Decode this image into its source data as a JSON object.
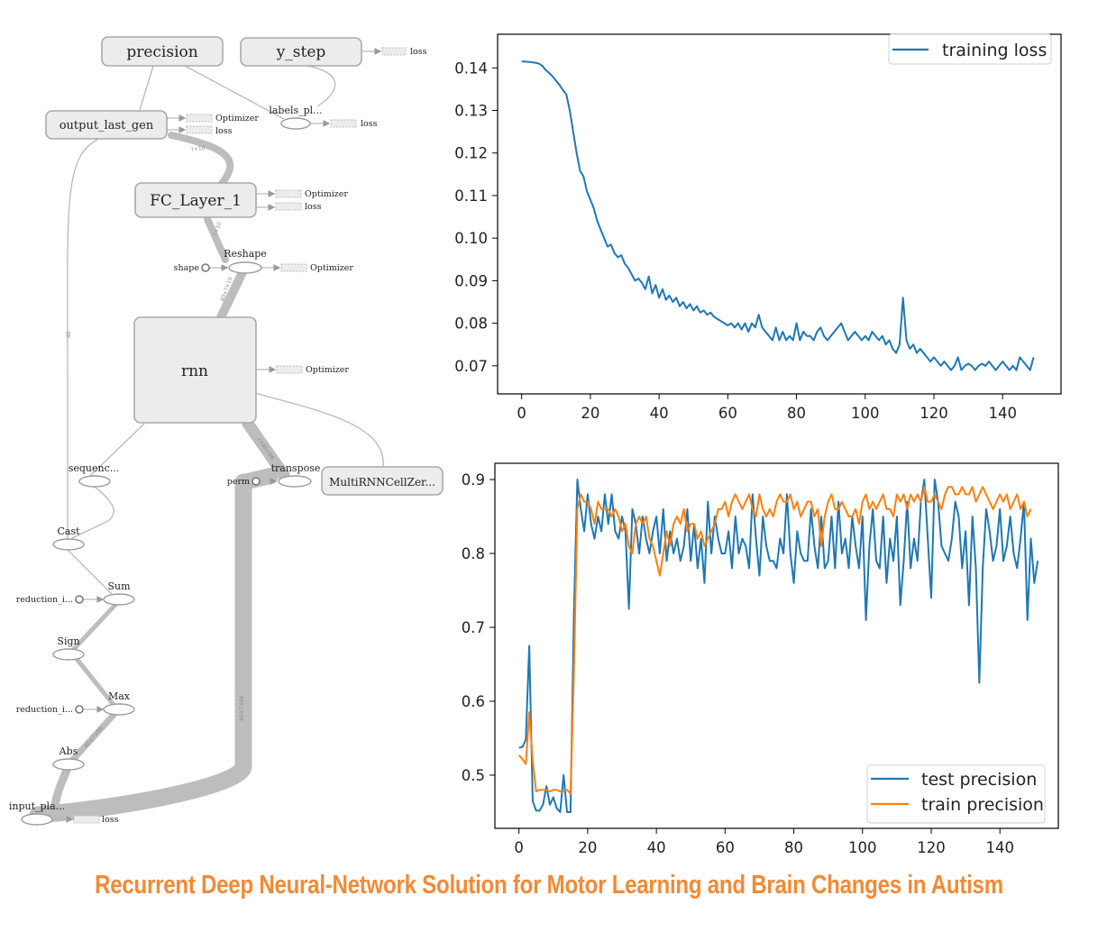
{
  "graph": {
    "nodes": {
      "precision": "precision",
      "y_step": "y_step",
      "output_last_gen": "output_last_gen",
      "labels_pl": "labels_pl...",
      "fc_layer": "FC_Layer_1",
      "reshape": "Reshape",
      "shape": "shape",
      "rnn": "rnn",
      "sequence": "sequenc...",
      "transpose": "transpose",
      "perm": "perm",
      "multirnn": "MultiRNNCellZer...",
      "cast": "Cast",
      "sum": "Sum",
      "reduction_1": "reduction_i...",
      "sign": "Sign",
      "max": "Max",
      "reduction_2": "reduction_i...",
      "abs": "Abs",
      "input_pla": "input_pla..."
    },
    "aux": {
      "loss": "loss",
      "optimizer": "Optimizer"
    }
  },
  "chart_data": [
    {
      "type": "line",
      "xlim": [
        -7,
        157
      ],
      "ylim": [
        0.0634,
        0.1479
      ],
      "xticks": [
        0,
        20,
        40,
        60,
        80,
        100,
        120,
        140
      ],
      "yticks": [
        0.07,
        0.08,
        0.09,
        0.1,
        0.11,
        0.12,
        0.13,
        0.14
      ],
      "legend": "upper right",
      "series": [
        {
          "name": "training loss",
          "color": "#1f77b4",
          "x_start": 0,
          "values": [
            0.1415,
            0.1415,
            0.1414,
            0.1413,
            0.1412,
            0.141,
            0.1405,
            0.1395,
            0.1388,
            0.138,
            0.137,
            0.136,
            0.1348,
            0.1338,
            0.13,
            0.125,
            0.12,
            0.1158,
            0.1145,
            0.111,
            0.109,
            0.107,
            0.104,
            0.102,
            0.1,
            0.098,
            0.0985,
            0.0965,
            0.0955,
            0.096,
            0.094,
            0.093,
            0.0915,
            0.09,
            0.0905,
            0.0895,
            0.088,
            0.091,
            0.087,
            0.089,
            0.086,
            0.088,
            0.0855,
            0.0865,
            0.085,
            0.086,
            0.084,
            0.085,
            0.0835,
            0.0845,
            0.083,
            0.084,
            0.0825,
            0.083,
            0.082,
            0.0825,
            0.0815,
            0.081,
            0.0805,
            0.08,
            0.0795,
            0.08,
            0.079,
            0.08,
            0.0785,
            0.08,
            0.078,
            0.08,
            0.079,
            0.082,
            0.079,
            0.078,
            0.077,
            0.076,
            0.079,
            0.076,
            0.078,
            0.076,
            0.077,
            0.076,
            0.08,
            0.076,
            0.078,
            0.077,
            0.077,
            0.076,
            0.078,
            0.079,
            0.077,
            0.076,
            0.077,
            0.078,
            0.079,
            0.08,
            0.078,
            0.076,
            0.077,
            0.078,
            0.077,
            0.076,
            0.077,
            0.076,
            0.078,
            0.077,
            0.076,
            0.077,
            0.075,
            0.076,
            0.074,
            0.073,
            0.075,
            0.086,
            0.076,
            0.074,
            0.075,
            0.073,
            0.074,
            0.073,
            0.072,
            0.071,
            0.072,
            0.071,
            0.07,
            0.071,
            0.07,
            0.069,
            0.07,
            0.072,
            0.069,
            0.07,
            0.0705,
            0.07,
            0.069,
            0.07,
            0.0705,
            0.07,
            0.071,
            0.07,
            0.069,
            0.07,
            0.071,
            0.07,
            0.069,
            0.07,
            0.069,
            0.072,
            0.071,
            0.07,
            0.069,
            0.072
          ]
        }
      ]
    },
    {
      "type": "line",
      "xlim": [
        -7,
        157
      ],
      "ylim": [
        0.428,
        0.922
      ],
      "xticks": [
        0,
        20,
        40,
        60,
        80,
        100,
        120,
        140
      ],
      "yticks": [
        0.5,
        0.6,
        0.7,
        0.8,
        0.9
      ],
      "legend": "lower right",
      "series": [
        {
          "name": "test precision",
          "color": "#1f77b4",
          "x_start": 0,
          "values": [
            0.537,
            0.538,
            0.548,
            0.675,
            0.465,
            0.452,
            0.452,
            0.46,
            0.485,
            0.46,
            0.47,
            0.455,
            0.45,
            0.5,
            0.45,
            0.45,
            0.72,
            0.9,
            0.86,
            0.83,
            0.88,
            0.84,
            0.82,
            0.85,
            0.83,
            0.88,
            0.84,
            0.88,
            0.83,
            0.82,
            0.85,
            0.83,
            0.725,
            0.86,
            0.84,
            0.8,
            0.85,
            0.82,
            0.8,
            0.83,
            0.85,
            0.8,
            0.86,
            0.79,
            0.83,
            0.8,
            0.82,
            0.79,
            0.81,
            0.86,
            0.79,
            0.84,
            0.78,
            0.82,
            0.76,
            0.87,
            0.8,
            0.85,
            0.82,
            0.8,
            0.8,
            0.83,
            0.78,
            0.85,
            0.8,
            0.82,
            0.81,
            0.78,
            0.88,
            0.82,
            0.77,
            0.85,
            0.81,
            0.79,
            0.79,
            0.78,
            0.82,
            0.8,
            0.88,
            0.8,
            0.76,
            0.83,
            0.8,
            0.79,
            0.79,
            0.86,
            0.81,
            0.78,
            0.85,
            0.78,
            0.79,
            0.85,
            0.78,
            0.87,
            0.8,
            0.82,
            0.78,
            0.85,
            0.81,
            0.78,
            0.85,
            0.71,
            0.81,
            0.86,
            0.79,
            0.78,
            0.85,
            0.76,
            0.82,
            0.79,
            0.85,
            0.73,
            0.79,
            0.87,
            0.78,
            0.82,
            0.79,
            0.87,
            0.9,
            0.82,
            0.74,
            0.9,
            0.87,
            0.81,
            0.8,
            0.79,
            0.82,
            0.87,
            0.85,
            0.78,
            0.83,
            0.73,
            0.85,
            0.78,
            0.625,
            0.78,
            0.86,
            0.83,
            0.79,
            0.81,
            0.86,
            0.79,
            0.81,
            0.85,
            0.8,
            0.78,
            0.82,
            0.87,
            0.71,
            0.82,
            0.76,
            0.79
          ]
        },
        {
          "name": "train precision",
          "color": "#ff7f0e",
          "x_start": 0,
          "values": [
            0.527,
            0.522,
            0.515,
            0.585,
            0.52,
            0.478,
            0.48,
            0.48,
            0.48,
            0.478,
            0.48,
            0.48,
            0.478,
            0.478,
            0.48,
            0.475,
            0.64,
            0.86,
            0.88,
            0.87,
            0.87,
            0.86,
            0.84,
            0.87,
            0.86,
            0.86,
            0.86,
            0.85,
            0.86,
            0.85,
            0.83,
            0.84,
            0.81,
            0.8,
            0.84,
            0.85,
            0.84,
            0.85,
            0.82,
            0.81,
            0.79,
            0.77,
            0.8,
            0.83,
            0.81,
            0.84,
            0.85,
            0.84,
            0.86,
            0.83,
            0.84,
            0.84,
            0.82,
            0.83,
            0.81,
            0.82,
            0.83,
            0.84,
            0.86,
            0.86,
            0.87,
            0.85,
            0.87,
            0.88,
            0.87,
            0.86,
            0.87,
            0.88,
            0.86,
            0.85,
            0.88,
            0.86,
            0.85,
            0.86,
            0.85,
            0.87,
            0.88,
            0.87,
            0.87,
            0.88,
            0.86,
            0.87,
            0.85,
            0.86,
            0.87,
            0.87,
            0.85,
            0.86,
            0.81,
            0.85,
            0.87,
            0.88,
            0.86,
            0.86,
            0.87,
            0.86,
            0.85,
            0.85,
            0.86,
            0.84,
            0.87,
            0.88,
            0.86,
            0.87,
            0.86,
            0.87,
            0.88,
            0.86,
            0.86,
            0.85,
            0.88,
            0.87,
            0.88,
            0.86,
            0.88,
            0.87,
            0.88,
            0.87,
            0.89,
            0.87,
            0.87,
            0.88,
            0.87,
            0.86,
            0.88,
            0.89,
            0.89,
            0.88,
            0.88,
            0.89,
            0.88,
            0.88,
            0.89,
            0.87,
            0.88,
            0.89,
            0.88,
            0.87,
            0.86,
            0.87,
            0.88,
            0.87,
            0.88,
            0.86,
            0.87,
            0.88,
            0.86,
            0.87,
            0.85,
            0.86
          ]
        }
      ]
    }
  ],
  "caption": "Recurrent Deep Neural-Network Solution for Motor Learning and Brain Changes in Autism"
}
